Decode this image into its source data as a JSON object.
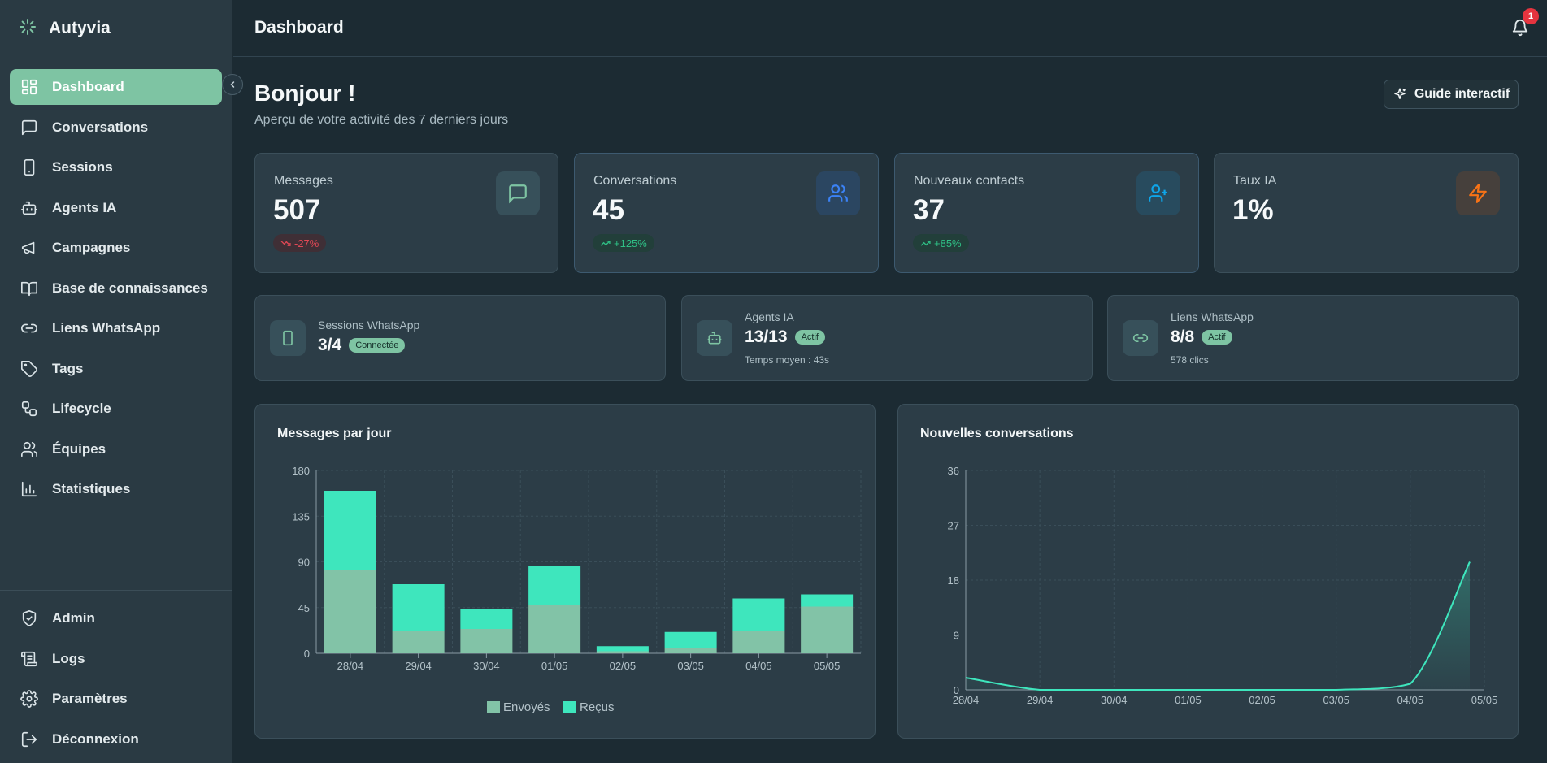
{
  "brand": {
    "name": "Autyvia"
  },
  "nav": [
    {
      "label": "Dashboard",
      "icon": "grid-icon",
      "active": true
    },
    {
      "label": "Conversations",
      "icon": "message-icon"
    },
    {
      "label": "Sessions",
      "icon": "phone-icon"
    },
    {
      "label": "Agents IA",
      "icon": "bot-icon"
    },
    {
      "label": "Campagnes",
      "icon": "megaphone-icon"
    },
    {
      "label": "Base de connaissances",
      "icon": "book-icon"
    },
    {
      "label": "Liens WhatsApp",
      "icon": "link-icon"
    },
    {
      "label": "Tags",
      "icon": "tag-icon"
    },
    {
      "label": "Lifecycle",
      "icon": "workflow-icon"
    },
    {
      "label": "Équipes",
      "icon": "users-icon"
    },
    {
      "label": "Statistiques",
      "icon": "bar-chart-icon"
    }
  ],
  "nav_bottom": [
    {
      "label": "Admin",
      "icon": "shield-icon"
    },
    {
      "label": "Logs",
      "icon": "scroll-icon"
    },
    {
      "label": "Paramètres",
      "icon": "gear-icon"
    },
    {
      "label": "Déconnexion",
      "icon": "logout-icon"
    }
  ],
  "topbar": {
    "title": "Dashboard",
    "notifications": "1"
  },
  "header": {
    "greeting": "Bonjour !",
    "subtitle": "Aperçu de votre activité des 7 derniers jours",
    "guide_label": "Guide interactif"
  },
  "kpis": [
    {
      "label": "Messages",
      "value": "507",
      "trend": "-27%",
      "direction": "down",
      "icon": "message-icon",
      "color": "#7ec4a3"
    },
    {
      "label": "Conversations",
      "value": "45",
      "trend": "+125%",
      "direction": "up",
      "icon": "users-icon",
      "color": "#3b82f6"
    },
    {
      "label": "Nouveaux contacts",
      "value": "37",
      "trend": "+85%",
      "direction": "up",
      "icon": "user-plus-icon",
      "color": "#0ea5e9"
    },
    {
      "label": "Taux IA",
      "value": "1%",
      "icon": "zap-icon",
      "color": "#f97316"
    }
  ],
  "stats": [
    {
      "label": "Sessions WhatsApp",
      "value": "3/4",
      "badge": "Connectée",
      "icon": "phone-icon"
    },
    {
      "label": "Agents IA",
      "value": "13/13",
      "badge": "Actif",
      "sub": "Temps moyen : 43s",
      "icon": "bot-icon"
    },
    {
      "label": "Liens WhatsApp",
      "value": "8/8",
      "badge": "Actif",
      "sub": "578 clics",
      "icon": "link-icon"
    }
  ],
  "chart_data": [
    {
      "type": "bar",
      "stacked": true,
      "title": "Messages par jour",
      "categories": [
        "28/04",
        "29/04",
        "30/04",
        "01/05",
        "02/05",
        "03/05",
        "04/05",
        "05/05"
      ],
      "series": [
        {
          "name": "Envoyés",
          "color": "#82c3a7",
          "values": [
            82,
            22,
            24,
            48,
            2,
            5,
            22,
            46
          ]
        },
        {
          "name": "Reçus",
          "color": "#3ee6bd",
          "values": [
            78,
            46,
            20,
            38,
            5,
            16,
            32,
            12
          ]
        }
      ],
      "ylim": [
        0,
        180
      ],
      "yticks": [
        0,
        45,
        90,
        135,
        180
      ],
      "legend": "bottom",
      "grid": true
    },
    {
      "type": "area",
      "title": "Nouvelles conversations",
      "categories": [
        "28/04",
        "29/04",
        "30/04",
        "01/05",
        "02/05",
        "03/05",
        "04/05",
        "05/05"
      ],
      "series": [
        {
          "color": "#3ee6bd",
          "values": [
            2,
            0,
            0,
            0,
            0,
            0,
            1,
            21
          ]
        }
      ],
      "ylim": [
        0,
        36
      ],
      "yticks": [
        0,
        9,
        18,
        27,
        36
      ],
      "grid": true
    }
  ]
}
